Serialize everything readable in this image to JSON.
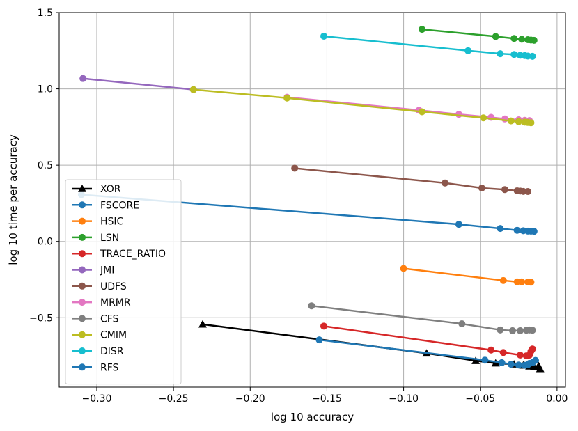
{
  "chart_data": {
    "type": "line",
    "xlabel": "log 10 accuracy",
    "ylabel": "log 10 time per accuracy",
    "xlim": [
      -0.3245,
      0.0055
    ],
    "ylim": [
      -0.955,
      1.5
    ],
    "xticks": [
      -0.3,
      -0.25,
      -0.2,
      -0.15,
      -0.1,
      -0.05,
      0.0
    ],
    "xtick_labels": [
      "−0.30",
      "−0.25",
      "−0.20",
      "−0.15",
      "−0.10",
      "−0.05",
      "0.00"
    ],
    "yticks": [
      -0.5,
      0.0,
      0.5,
      1.0,
      1.5
    ],
    "ytick_labels": [
      "−0.5",
      "0.0",
      "0.5",
      "1.0",
      "1.5"
    ],
    "grid": true,
    "legend_position": "lower-left",
    "series": [
      {
        "name": "XOR",
        "color": "#000000",
        "marker": "triangle",
        "x": [
          -0.231,
          -0.085,
          -0.053,
          -0.04,
          -0.028,
          -0.022,
          -0.018,
          -0.015,
          -0.012,
          -0.011
        ],
        "y": [
          -0.543,
          -0.733,
          -0.782,
          -0.798,
          -0.805,
          -0.812,
          -0.818,
          -0.822,
          -0.815,
          -0.835
        ]
      },
      {
        "name": "FSCORE",
        "color": "#1f77b4",
        "marker": "circle",
        "x": [
          -0.31,
          -0.064,
          -0.037,
          -0.026,
          -0.022,
          -0.019,
          -0.017,
          -0.015
        ],
        "y": [
          0.307,
          0.112,
          0.085,
          0.073,
          0.07,
          0.068,
          0.067,
          0.066
        ]
      },
      {
        "name": "HSIC",
        "color": "#ff7f0e",
        "marker": "circle",
        "x": [
          -0.1,
          -0.035,
          -0.026,
          -0.023,
          -0.019,
          -0.017
        ],
        "y": [
          -0.177,
          -0.256,
          -0.265,
          -0.265,
          -0.266,
          -0.267
        ]
      },
      {
        "name": "LSN",
        "color": "#2ca02c",
        "marker": "circle",
        "x": [
          -0.088,
          -0.04,
          -0.028,
          -0.023,
          -0.019,
          -0.017,
          -0.015
        ],
        "y": [
          1.39,
          1.343,
          1.33,
          1.325,
          1.322,
          1.32,
          1.318
        ]
      },
      {
        "name": "TRACE_RATIO",
        "color": "#d62728",
        "marker": "circle",
        "x": [
          -0.152,
          -0.043,
          -0.035,
          -0.024,
          -0.02,
          -0.018,
          -0.017,
          -0.016
        ],
        "y": [
          -0.555,
          -0.712,
          -0.728,
          -0.745,
          -0.75,
          -0.745,
          -0.72,
          -0.705
        ]
      },
      {
        "name": "JMI",
        "color": "#9467bd",
        "marker": "circle",
        "x": [
          -0.309,
          -0.237
        ],
        "y": [
          1.068,
          0.995
        ]
      },
      {
        "name": "UDFS",
        "color": "#8c564b",
        "marker": "circle",
        "x": [
          -0.171,
          -0.073,
          -0.049,
          -0.034,
          -0.026,
          -0.024,
          -0.022,
          -0.019
        ],
        "y": [
          0.48,
          0.383,
          0.35,
          0.34,
          0.332,
          0.33,
          0.328,
          0.327
        ]
      },
      {
        "name": "MRMR",
        "color": "#e377c2",
        "marker": "circle",
        "x": [
          -0.176,
          -0.09,
          -0.064,
          -0.043,
          -0.034,
          -0.025,
          -0.021,
          -0.018
        ],
        "y": [
          0.945,
          0.86,
          0.833,
          0.813,
          0.803,
          0.797,
          0.794,
          0.792
        ]
      },
      {
        "name": "CFS",
        "color": "#7f7f7f",
        "marker": "circle",
        "x": [
          -0.16,
          -0.062,
          -0.037,
          -0.029,
          -0.024,
          -0.02,
          -0.018,
          -0.016
        ],
        "y": [
          -0.422,
          -0.54,
          -0.58,
          -0.585,
          -0.585,
          -0.582,
          -0.58,
          -0.582
        ]
      },
      {
        "name": "CMIM",
        "color": "#bcbd22",
        "marker": "circle",
        "x": [
          -0.237,
          -0.176,
          -0.088,
          -0.048,
          -0.03,
          -0.025,
          -0.021,
          -0.019,
          -0.017
        ],
        "y": [
          0.995,
          0.94,
          0.85,
          0.81,
          0.79,
          0.785,
          0.782,
          0.78,
          0.778
        ]
      },
      {
        "name": "DISR",
        "color": "#17becf",
        "marker": "circle",
        "x": [
          -0.152,
          -0.058,
          -0.037,
          -0.028,
          -0.024,
          -0.021,
          -0.019,
          -0.016
        ],
        "y": [
          1.345,
          1.25,
          1.23,
          1.225,
          1.22,
          1.218,
          1.215,
          1.213
        ]
      },
      {
        "name": "RFS",
        "color": "#1f77b4",
        "marker": "circle",
        "x": [
          -0.155,
          -0.047,
          -0.036,
          -0.03,
          -0.025,
          -0.021,
          -0.019,
          -0.018,
          -0.016,
          -0.014
        ],
        "y": [
          -0.645,
          -0.778,
          -0.795,
          -0.805,
          -0.81,
          -0.812,
          -0.808,
          -0.8,
          -0.795,
          -0.78
        ]
      }
    ]
  }
}
